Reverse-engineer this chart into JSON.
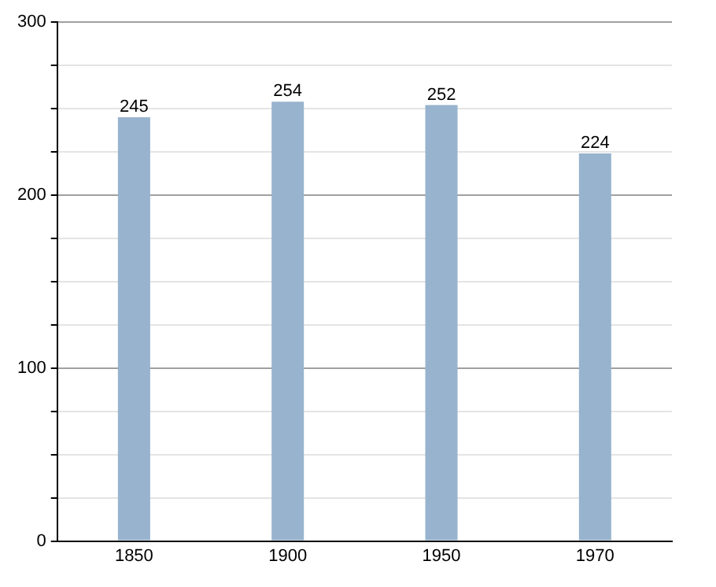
{
  "chart_data": {
    "type": "bar",
    "categories": [
      "1850",
      "1900",
      "1950",
      "1970"
    ],
    "values": [
      245,
      254,
      252,
      224
    ],
    "color": "#98b3ce",
    "ylim": [
      0,
      300
    ],
    "yticks": [
      0,
      {
        "value": 25,
        "label": null
      },
      {
        "value": 50,
        "label": null
      },
      {
        "value": 75,
        "label": null
      },
      100,
      {
        "value": 125,
        "label": null
      },
      {
        "value": 150,
        "label": null
      },
      {
        "value": 175,
        "label": null
      },
      200,
      {
        "value": 225,
        "label": null
      },
      {
        "value": 250,
        "label": null
      },
      {
        "value": 275,
        "label": null
      },
      300
    ],
    "grid": "y",
    "data_labels": true,
    "legend": false
  }
}
